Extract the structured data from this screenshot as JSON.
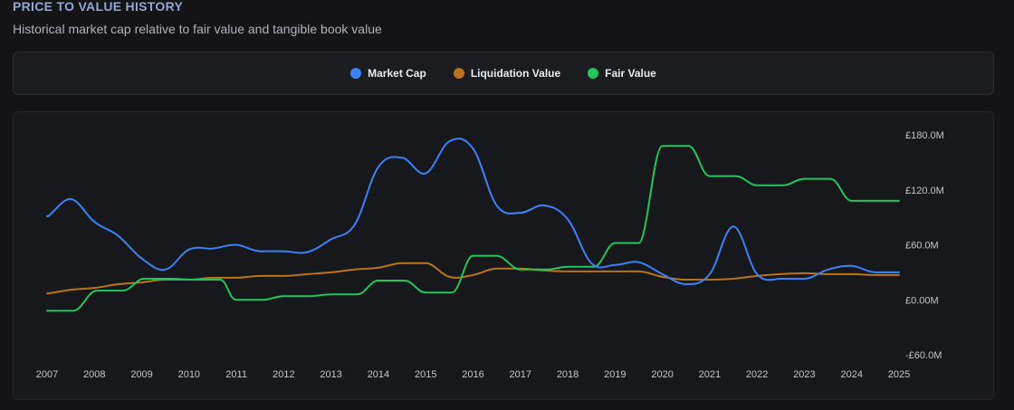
{
  "header": {
    "title": "PRICE TO VALUE HISTORY",
    "subtitle": "Historical market cap relative to fair value and tangible book value"
  },
  "chart_data": {
    "type": "line",
    "title": "",
    "xlabel": "",
    "ylabel": "",
    "x_ticks": [
      "2007",
      "2008",
      "2009",
      "2010",
      "2011",
      "2012",
      "2013",
      "2014",
      "2015",
      "2016",
      "2017",
      "2018",
      "2019",
      "2020",
      "2021",
      "2022",
      "2023",
      "2024",
      "2025"
    ],
    "y_ticks": [
      {
        "value": 180,
        "label": "£180.0M"
      },
      {
        "value": 120,
        "label": "£120.0M"
      },
      {
        "value": 60,
        "label": "£60.0M"
      },
      {
        "value": 0,
        "label": "£0.00M"
      },
      {
        "value": -60,
        "label": "-£60.0M"
      }
    ],
    "xlim": [
      2007,
      2025
    ],
    "ylim": [
      -60,
      180
    ],
    "series": [
      {
        "name": "Market Cap",
        "color": "#3b82f6",
        "points": [
          [
            2007.0,
            91
          ],
          [
            2007.5,
            110
          ],
          [
            2008.0,
            85
          ],
          [
            2008.5,
            70
          ],
          [
            2009.0,
            45
          ],
          [
            2009.5,
            33
          ],
          [
            2010.0,
            55
          ],
          [
            2010.5,
            56
          ],
          [
            2011.0,
            60
          ],
          [
            2011.5,
            53
          ],
          [
            2012.0,
            53
          ],
          [
            2012.5,
            52
          ],
          [
            2013.0,
            66
          ],
          [
            2013.5,
            82
          ],
          [
            2014.0,
            145
          ],
          [
            2014.5,
            155
          ],
          [
            2015.0,
            138
          ],
          [
            2015.5,
            173
          ],
          [
            2016.0,
            165
          ],
          [
            2016.5,
            103
          ],
          [
            2017.0,
            95
          ],
          [
            2017.5,
            103
          ],
          [
            2018.0,
            88
          ],
          [
            2018.5,
            40
          ],
          [
            2019.0,
            38
          ],
          [
            2019.5,
            41
          ],
          [
            2020.0,
            28
          ],
          [
            2020.5,
            17
          ],
          [
            2021.0,
            28
          ],
          [
            2021.5,
            80
          ],
          [
            2022.0,
            28
          ],
          [
            2022.5,
            23
          ],
          [
            2023.0,
            23
          ],
          [
            2023.5,
            33
          ],
          [
            2024.0,
            37
          ],
          [
            2024.5,
            30
          ],
          [
            2025.0,
            30
          ]
        ]
      },
      {
        "name": "Liquidation Value",
        "color": "#b8731c",
        "points": [
          [
            2007.0,
            7
          ],
          [
            2007.5,
            11
          ],
          [
            2008.0,
            13
          ],
          [
            2008.5,
            17
          ],
          [
            2009.0,
            19
          ],
          [
            2009.5,
            22
          ],
          [
            2010.0,
            22
          ],
          [
            2010.5,
            24
          ],
          [
            2011.0,
            24
          ],
          [
            2011.5,
            26
          ],
          [
            2012.0,
            26
          ],
          [
            2012.5,
            28
          ],
          [
            2013.0,
            30
          ],
          [
            2013.5,
            33
          ],
          [
            2014.0,
            35
          ],
          [
            2014.5,
            40
          ],
          [
            2015.0,
            40
          ],
          [
            2015.5,
            25
          ],
          [
            2016.0,
            27
          ],
          [
            2016.5,
            34
          ],
          [
            2017.0,
            34
          ],
          [
            2017.5,
            32
          ],
          [
            2018.0,
            31
          ],
          [
            2018.5,
            31
          ],
          [
            2019.0,
            31
          ],
          [
            2019.5,
            31
          ],
          [
            2020.0,
            25
          ],
          [
            2020.5,
            22
          ],
          [
            2021.0,
            22
          ],
          [
            2021.5,
            23
          ],
          [
            2022.0,
            26
          ],
          [
            2022.5,
            28
          ],
          [
            2023.0,
            29
          ],
          [
            2023.5,
            28
          ],
          [
            2024.0,
            28
          ],
          [
            2024.5,
            27
          ],
          [
            2025.0,
            27
          ]
        ]
      },
      {
        "name": "Fair Value",
        "color": "#22c55e",
        "points": [
          [
            2007.0,
            -12
          ],
          [
            2007.55,
            -12
          ],
          [
            2008.05,
            10
          ],
          [
            2008.6,
            10
          ],
          [
            2009.05,
            23
          ],
          [
            2009.6,
            23
          ],
          [
            2010.1,
            22
          ],
          [
            2010.65,
            22
          ],
          [
            2011.0,
            0
          ],
          [
            2011.55,
            0
          ],
          [
            2012.0,
            4
          ],
          [
            2012.55,
            4
          ],
          [
            2013.0,
            6
          ],
          [
            2013.55,
            6
          ],
          [
            2014.0,
            21
          ],
          [
            2014.55,
            21
          ],
          [
            2015.0,
            8
          ],
          [
            2015.55,
            8
          ],
          [
            2016.0,
            48
          ],
          [
            2016.5,
            48
          ],
          [
            2017.0,
            33
          ],
          [
            2017.55,
            33
          ],
          [
            2018.0,
            36
          ],
          [
            2018.55,
            36
          ],
          [
            2019.0,
            62
          ],
          [
            2019.5,
            62
          ],
          [
            2020.0,
            168
          ],
          [
            2020.55,
            168
          ],
          [
            2021.0,
            135
          ],
          [
            2021.55,
            135
          ],
          [
            2022.0,
            125
          ],
          [
            2022.55,
            125
          ],
          [
            2023.0,
            132
          ],
          [
            2023.55,
            132
          ],
          [
            2024.0,
            108
          ],
          [
            2024.55,
            108
          ],
          [
            2025.0,
            108
          ]
        ]
      }
    ],
    "legend": "top-center"
  }
}
